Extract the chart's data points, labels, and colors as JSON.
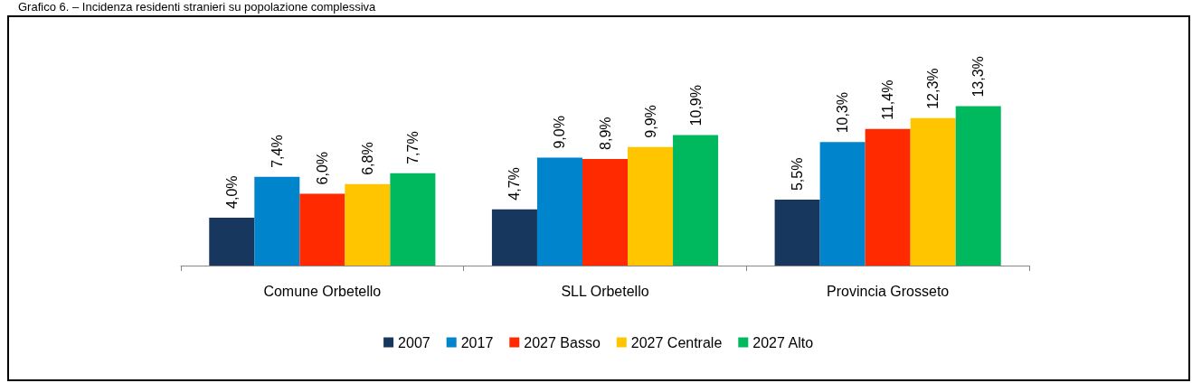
{
  "chart_data": {
    "type": "bar",
    "title": "Grafico 6. – Incidenza residenti stranieri su popolazione complessiva",
    "categories": [
      "Comune Orbetello",
      "SLL Orbetello",
      "Provincia Grosseto"
    ],
    "series": [
      {
        "name": "2007",
        "color": "#17375e",
        "values": [
          4.0,
          4.7,
          5.5
        ],
        "value_labels": [
          "4,0%",
          "4,7%",
          "5,5%"
        ]
      },
      {
        "name": "2017",
        "color": "#0084cc",
        "values": [
          7.4,
          9.0,
          10.3
        ],
        "value_labels": [
          "7,4%",
          "9,0%",
          "10,3%"
        ]
      },
      {
        "name": "2027 Basso",
        "color": "#ff2a00",
        "values": [
          6.0,
          8.9,
          11.4
        ],
        "value_labels": [
          "6,0%",
          "8,9%",
          "11,4%"
        ]
      },
      {
        "name": "2027 Centrale",
        "color": "#ffc600",
        "values": [
          6.8,
          9.9,
          12.3
        ],
        "value_labels": [
          "6,8%",
          "9,9%",
          "12,3%"
        ]
      },
      {
        "name": "2027 Alto",
        "color": "#00b95f",
        "values": [
          7.7,
          10.9,
          13.3
        ],
        "value_labels": [
          "7,7%",
          "10,9%",
          "13,3%"
        ]
      }
    ],
    "legend": "bottom",
    "grid": false
  }
}
